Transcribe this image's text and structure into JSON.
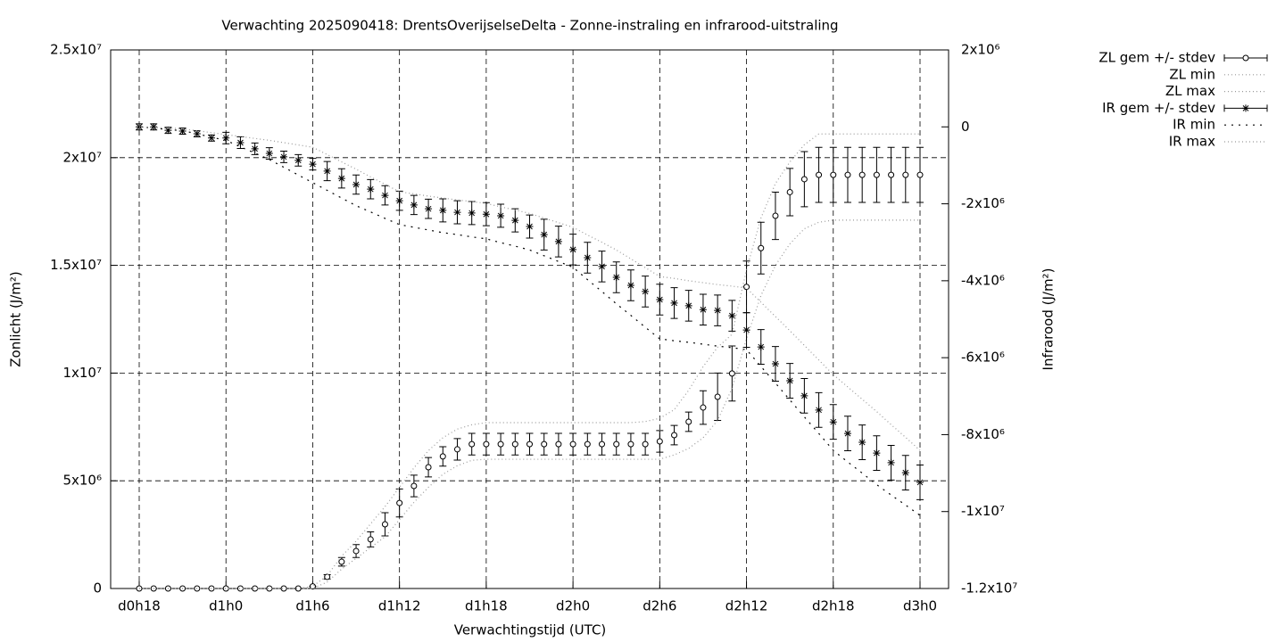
{
  "chart_data": {
    "type": "errorbar",
    "title": "Verwachting 2025090418: DrentsOverijselseDelta - Zonne-instraling en infrarood-uitstraling",
    "x_label": "Verwachtingstijd (UTC)",
    "y_label": "Zonlicht (J/m²)",
    "y2_label": "Infrarood (J/m²)",
    "categories": [
      "d0h18",
      null,
      null,
      null,
      null,
      null,
      "d1h0",
      null,
      null,
      null,
      null,
      null,
      "d1h6",
      null,
      null,
      null,
      null,
      null,
      "d1h12",
      null,
      null,
      null,
      null,
      null,
      "d1h18",
      null,
      null,
      null,
      null,
      null,
      "d2h0",
      null,
      null,
      null,
      null,
      null,
      "d2h6",
      null,
      null,
      null,
      null,
      null,
      "d2h12",
      null,
      null,
      null,
      null,
      null,
      "d2h18",
      null,
      null,
      null,
      null,
      null,
      "d3h0"
    ],
    "ylim": [
      0,
      25000000.0
    ],
    "yticks": [
      0,
      {
        "value": 5000000.0,
        "label": "5x10⁶"
      },
      {
        "value": 10000000.0,
        "label": "1x10⁷"
      },
      {
        "value": 15000000.0,
        "label": "1.5x10⁷"
      },
      {
        "value": 20000000.0,
        "label": "2x10⁷"
      },
      {
        "value": 25000000.0,
        "label": "2.5x10⁷"
      }
    ],
    "y2lim": [
      -12000000.0,
      2000000.0
    ],
    "y2ticks": [
      {
        "value": 2000000.0,
        "label": "2x10⁶"
      },
      0,
      {
        "value": -2000000.0,
        "label": "-2x10⁶"
      },
      {
        "value": -4000000.0,
        "label": "-4x10⁶"
      },
      {
        "value": -6000000.0,
        "label": "-6x10⁶"
      },
      {
        "value": -8000000.0,
        "label": "-8x10⁶"
      },
      {
        "value": -10000000.0,
        "label": "-1x10⁷"
      },
      {
        "value": -12000000.0,
        "label": "-1.2x10⁷"
      }
    ],
    "grid": true,
    "legend": "outside-top-right",
    "series": [
      {
        "name": "ZL gem +/- stdev",
        "style": "errorbars",
        "marker": "circle",
        "color": "#000000",
        "axis": "y",
        "values": [
          0,
          0,
          0,
          0,
          0,
          0,
          0,
          0,
          0,
          0,
          0,
          0,
          100000.0,
          540000.0,
          1240000.0,
          1740000.0,
          2280000.0,
          2980000.0,
          3970000.0,
          4760000.0,
          5630000.0,
          6130000.0,
          6460000.0,
          6700000.0,
          6700000.0,
          6700000.0,
          6700000.0,
          6700000.0,
          6700000.0,
          6700000.0,
          6700000.0,
          6700000.0,
          6700000.0,
          6700000.0,
          6700000.0,
          6700000.0,
          6830000.0,
          7120000.0,
          7740000.0,
          8400000.0,
          8900000.0,
          9980000.0,
          14000000.0,
          15800000.0,
          17300000.0,
          18400000.0,
          19000000.0,
          19200000.0,
          19200000.0,
          19200000.0,
          19200000.0,
          19200000.0,
          19200000.0,
          19200000.0,
          19200000.0
        ],
        "errors": [
          0,
          0,
          0,
          0,
          0,
          0,
          0,
          0,
          0,
          0,
          0,
          0,
          0,
          100000.0,
          200000.0,
          300000.0,
          350000.0,
          540000.0,
          650000.0,
          500000.0,
          450000.0,
          450000.0,
          500000.0,
          500000.0,
          500000.0,
          500000.0,
          500000.0,
          500000.0,
          500000.0,
          500000.0,
          500000.0,
          500000.0,
          500000.0,
          500000.0,
          500000.0,
          500000.0,
          500000.0,
          450000.0,
          450000.0,
          780000.0,
          1100000.0,
          1280000.0,
          1200000.0,
          1200000.0,
          1100000.0,
          1100000.0,
          1280000.0,
          1280000.0,
          1280000.0,
          1280000.0,
          1280000.0,
          1280000.0,
          1280000.0,
          1280000.0,
          1280000.0
        ]
      },
      {
        "name": "ZL min",
        "style": "dotted",
        "color": "#999999",
        "axis": "y",
        "values": [
          0,
          0,
          0,
          0,
          0,
          0,
          0,
          0,
          0,
          0,
          0,
          0,
          0,
          300000.0,
          900000.0,
          1400000.0,
          1900000.0,
          2400000.0,
          3200000.0,
          4000000.0,
          4700000.0,
          5300000.0,
          5700000.0,
          5950000.0,
          6000000.0,
          6000000.0,
          6000000.0,
          6000000.0,
          6000000.0,
          6000000.0,
          6000000.0,
          6000000.0,
          6000000.0,
          6000000.0,
          6000000.0,
          6000000.0,
          6000000.0,
          6200000.0,
          6500000.0,
          7000000.0,
          7800000.0,
          9300000.0,
          11600000.0,
          13600000.0,
          15000000.0,
          16000000.0,
          16700000.0,
          17000000.0,
          17100000.0,
          17100000.0,
          17100000.0,
          17100000.0,
          17100000.0,
          17100000.0,
          17100000.0
        ]
      },
      {
        "name": "ZL max",
        "style": "dotted",
        "color": "#999999",
        "axis": "y",
        "values": [
          0,
          0,
          0,
          0,
          0,
          0,
          0,
          0,
          0,
          0,
          0,
          0,
          100000.0,
          600000.0,
          1500000.0,
          2200000.0,
          3000000.0,
          3800000.0,
          4700000.0,
          5600000.0,
          6400000.0,
          7000000.0,
          7400000.0,
          7600000.0,
          7700000.0,
          7700000.0,
          7700000.0,
          7700000.0,
          7700000.0,
          7700000.0,
          7700000.0,
          7700000.0,
          7700000.0,
          7700000.0,
          7700000.0,
          7750000.0,
          7900000.0,
          8300000.0,
          9200000.0,
          10300000.0,
          11200000.0,
          11800000.0,
          14800000.0,
          17200000.0,
          18800000.0,
          19800000.0,
          20600000.0,
          21100000.0,
          21100000.0,
          21100000.0,
          21100000.0,
          21100000.0,
          21100000.0,
          21100000.0,
          21100000.0
        ]
      },
      {
        "name": "IR gem +/- stdev",
        "style": "errorbars",
        "marker": "star",
        "color": "#000000",
        "axis": "y2",
        "values": [
          0,
          0,
          -90000.0,
          -110000.0,
          -180000.0,
          -290000.0,
          -290000.0,
          -410000.0,
          -570000.0,
          -690000.0,
          -780000.0,
          -870000.0,
          -970000.0,
          -1150000.0,
          -1340000.0,
          -1500000.0,
          -1620000.0,
          -1780000.0,
          -1920000.0,
          -2030000.0,
          -2130000.0,
          -2170000.0,
          -2220000.0,
          -2240000.0,
          -2270000.0,
          -2310000.0,
          -2430000.0,
          -2590000.0,
          -2800000.0,
          -2980000.0,
          -3190000.0,
          -3400000.0,
          -3630000.0,
          -3910000.0,
          -4120000.0,
          -4280000.0,
          -4490000.0,
          -4580000.0,
          -4650000.0,
          -4750000.0,
          -4770000.0,
          -4910000.0,
          -5280000.0,
          -5720000.0,
          -6160000.0,
          -6600000.0,
          -6990000.0,
          -7360000.0,
          -7670000.0,
          -7970000.0,
          -8200000.0,
          -8480000.0,
          -8730000.0,
          -8990000.0,
          -9240000.0
        ],
        "errors": [
          80000.0,
          80000.0,
          80000.0,
          80000.0,
          80000.0,
          80000.0,
          150000.0,
          150000.0,
          150000.0,
          150000.0,
          150000.0,
          150000.0,
          150000.0,
          250000.0,
          250000.0,
          250000.0,
          250000.0,
          250000.0,
          250000.0,
          250000.0,
          250000.0,
          300000.0,
          300000.0,
          300000.0,
          300000.0,
          300000.0,
          300000.0,
          300000.0,
          400000.0,
          400000.0,
          400000.0,
          400000.0,
          400000.0,
          400000.0,
          400000.0,
          400000.0,
          400000.0,
          400000.0,
          400000.0,
          400000.0,
          400000.0,
          400000.0,
          450000.0,
          450000.0,
          450000.0,
          450000.0,
          450000.0,
          450000.0,
          450000.0,
          450000.0,
          450000.0,
          450000.0,
          450000.0,
          450000.0,
          450000.0
        ]
      },
      {
        "name": "IR min",
        "style": "sparse-dotted",
        "color": "#000000",
        "axis": "y2",
        "values": [
          0,
          -30000.0,
          -70000.0,
          -100000.0,
          -180000.0,
          -270000.0,
          -350000.0,
          -520000.0,
          -680000.0,
          -850000.0,
          -1050000.0,
          -1250000.0,
          -1450000.0,
          -1650000.0,
          -1850000.0,
          -2050000.0,
          -2210000.0,
          -2380000.0,
          -2540000.0,
          -2610000.0,
          -2680000.0,
          -2750000.0,
          -2800000.0,
          -2860000.0,
          -2910000.0,
          -3010000.0,
          -3100000.0,
          -3200000.0,
          -3350000.0,
          -3500000.0,
          -3650000.0,
          -3970000.0,
          -4280000.0,
          -4600000.0,
          -4900000.0,
          -5210000.0,
          -5510000.0,
          -5560000.0,
          -5600000.0,
          -5650000.0,
          -5700000.0,
          -5740000.0,
          -5790000.0,
          -6230000.0,
          -6660000.0,
          -7100000.0,
          -7540000.0,
          -7970000.0,
          -8410000.0,
          -8710000.0,
          -9000000.0,
          -9300000.0,
          -9570000.0,
          -9830000.0,
          -10100000.0
        ]
      },
      {
        "name": "IR max",
        "style": "dotted",
        "color": "#999999",
        "axis": "y2",
        "values": [
          0,
          -20000.0,
          -30000.0,
          -50000.0,
          -100000.0,
          -150000.0,
          -200000.0,
          -250000.0,
          -300000.0,
          -350000.0,
          -410000.0,
          -470000.0,
          -530000.0,
          -720000.0,
          -910000.0,
          -1100000.0,
          -1300000.0,
          -1490000.0,
          -1690000.0,
          -1740000.0,
          -1800000.0,
          -1850000.0,
          -1900000.0,
          -1940000.0,
          -1990000.0,
          -2080000.0,
          -2160000.0,
          -2250000.0,
          -2370000.0,
          -2490000.0,
          -2610000.0,
          -2810000.0,
          -3000000.0,
          -3200000.0,
          -3430000.0,
          -3660000.0,
          -3890000.0,
          -3940000.0,
          -4000000.0,
          -4050000.0,
          -4100000.0,
          -4140000.0,
          -4190000.0,
          -4560000.0,
          -4930000.0,
          -5300000.0,
          -5680000.0,
          -6060000.0,
          -6440000.0,
          -6760000.0,
          -7080000.0,
          -7400000.0,
          -7740000.0,
          -8070000.0,
          -8410000.0
        ]
      }
    ]
  }
}
